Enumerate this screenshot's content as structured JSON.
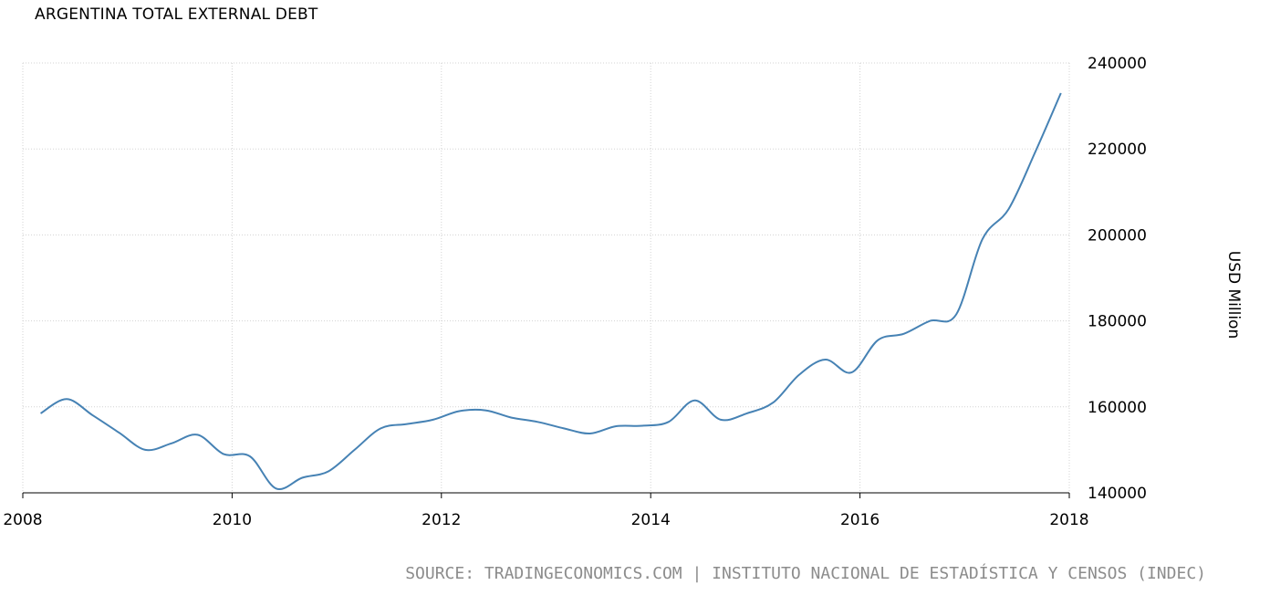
{
  "title": "ARGENTINA TOTAL EXTERNAL DEBT",
  "source": "SOURCE: TRADINGECONOMICS.COM | INSTITUTO NACIONAL DE ESTADÍSTICA Y CENSOS (INDEC)",
  "colors": {
    "line": "#4682b4",
    "grid": "#d3d3d3",
    "axis": "#000000",
    "source_text": "#8c8c8c"
  },
  "chart_data": {
    "type": "line",
    "title": "ARGENTINA TOTAL EXTERNAL DEBT",
    "xlabel": "",
    "ylabel": "USD Million",
    "xlim": [
      2008,
      2018
    ],
    "ylim": [
      140000,
      240000
    ],
    "x_ticks": [
      2008,
      2010,
      2012,
      2014,
      2016,
      2018
    ],
    "y_ticks": [
      140000,
      160000,
      180000,
      200000,
      220000,
      240000
    ],
    "grid": true,
    "y_axis_position": "right",
    "series": [
      {
        "x": [
          2008.17,
          2008.42,
          2008.67,
          2008.92,
          2009.17,
          2009.42,
          2009.67,
          2009.92,
          2010.17,
          2010.42,
          2010.67,
          2010.92,
          2011.17,
          2011.42,
          2011.67,
          2011.92,
          2012.17,
          2012.42,
          2012.67,
          2012.92,
          2013.17,
          2013.42,
          2013.67,
          2013.92,
          2014.17,
          2014.42,
          2014.67,
          2014.92,
          2015.17,
          2015.42,
          2015.67,
          2015.92,
          2016.17,
          2016.42,
          2016.67,
          2016.92,
          2017.17,
          2017.42,
          2017.67,
          2017.92
        ],
        "values": [
          158500,
          161800,
          158000,
          154000,
          150000,
          151500,
          153500,
          149000,
          148500,
          141000,
          143500,
          145000,
          150000,
          155000,
          156000,
          157000,
          159000,
          159200,
          157500,
          156500,
          155000,
          153800,
          155500,
          155600,
          156500,
          161500,
          157000,
          158500,
          161000,
          167500,
          171000,
          168000,
          175500,
          177000,
          180000,
          181500,
          199000,
          206000,
          219000,
          233000
        ]
      }
    ]
  }
}
